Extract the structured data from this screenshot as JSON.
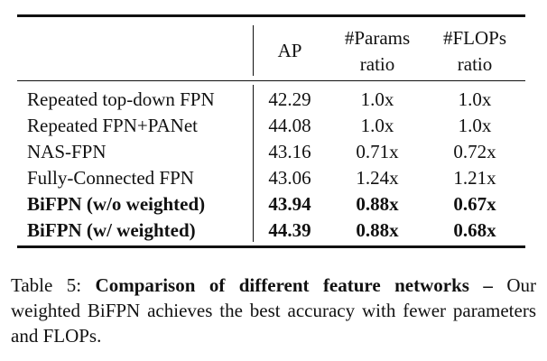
{
  "table": {
    "headers": {
      "ap": "AP",
      "params_line1": "#Params",
      "params_line2": "ratio",
      "flops_line1": "#FLOPs",
      "flops_line2": "ratio"
    },
    "rows": [
      {
        "method": "Repeated top-down FPN",
        "ap": "42.29",
        "params": "1.0x",
        "flops": "1.0x"
      },
      {
        "method": "Repeated FPN+PANet",
        "ap": "44.08",
        "params": "1.0x",
        "flops": "1.0x"
      },
      {
        "method": "NAS-FPN",
        "ap": "43.16",
        "params": "0.71x",
        "flops": "0.72x"
      },
      {
        "method": "Fully-Connected FPN",
        "ap": "43.06",
        "params": "1.24x",
        "flops": "1.21x"
      },
      {
        "method": "BiFPN (w/o weighted)",
        "ap": "43.94",
        "params": "0.88x",
        "flops": "0.67x"
      },
      {
        "method": "BiFPN (w/ weighted)",
        "ap": "44.39",
        "params": "0.88x",
        "flops": "0.68x"
      }
    ]
  },
  "caption": {
    "label": "Table 5:",
    "title": "Comparison of different feature networks –",
    "text": "Our weighted BiFPN achieves the best accuracy with fewer parameters and FLOPs."
  }
}
